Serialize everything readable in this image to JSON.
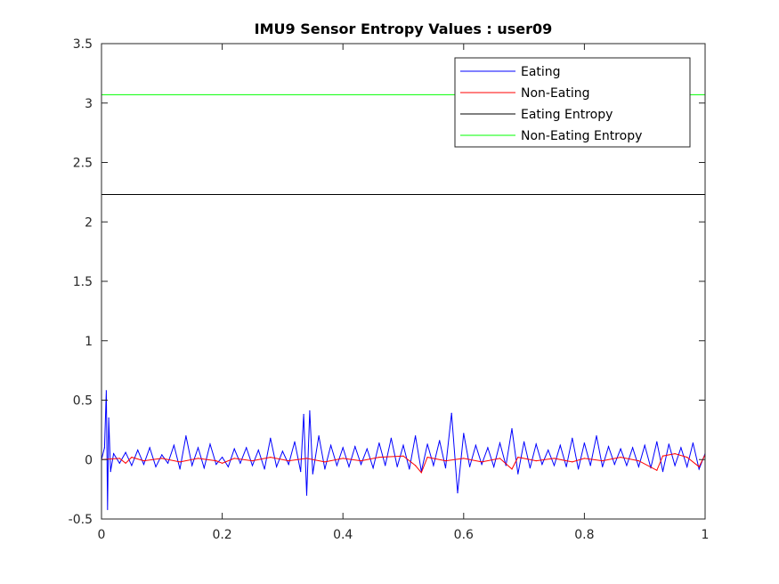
{
  "chart_data": {
    "type": "line",
    "title": "IMU9 Sensor Entropy Values : user09",
    "xlabel": "",
    "ylabel": "",
    "xlim": [
      0,
      1
    ],
    "ylim": [
      -0.5,
      3.5
    ],
    "xticks": [
      0,
      0.2,
      0.4,
      0.6,
      0.8,
      1
    ],
    "xtick_labels": [
      "0",
      "0.2",
      "0.4",
      "0.6",
      "0.8",
      "1"
    ],
    "yticks": [
      -0.5,
      0,
      0.5,
      1,
      1.5,
      2,
      2.5,
      3,
      3.5
    ],
    "ytick_labels": [
      "-0.5",
      "0",
      "0.5",
      "1",
      "1.5",
      "2",
      "2.5",
      "3",
      "3.5"
    ],
    "grid": false,
    "legend_position": "top-right",
    "series": [
      {
        "name": "Eating",
        "color": "#0000ff",
        "kind": "signal",
        "x": [
          0,
          0.005,
          0.008,
          0.01,
          0.012,
          0.015,
          0.02,
          0.03,
          0.04,
          0.05,
          0.06,
          0.07,
          0.08,
          0.09,
          0.1,
          0.11,
          0.12,
          0.13,
          0.14,
          0.15,
          0.16,
          0.17,
          0.18,
          0.19,
          0.2,
          0.21,
          0.22,
          0.23,
          0.24,
          0.25,
          0.26,
          0.27,
          0.28,
          0.29,
          0.3,
          0.31,
          0.32,
          0.33,
          0.335,
          0.34,
          0.345,
          0.35,
          0.36,
          0.37,
          0.38,
          0.39,
          0.4,
          0.41,
          0.42,
          0.43,
          0.44,
          0.45,
          0.46,
          0.47,
          0.48,
          0.49,
          0.5,
          0.51,
          0.52,
          0.53,
          0.54,
          0.55,
          0.56,
          0.57,
          0.58,
          0.59,
          0.6,
          0.61,
          0.62,
          0.63,
          0.64,
          0.65,
          0.66,
          0.67,
          0.68,
          0.69,
          0.7,
          0.71,
          0.72,
          0.73,
          0.74,
          0.75,
          0.76,
          0.77,
          0.78,
          0.79,
          0.8,
          0.81,
          0.82,
          0.83,
          0.84,
          0.85,
          0.86,
          0.87,
          0.88,
          0.89,
          0.9,
          0.91,
          0.92,
          0.93,
          0.94,
          0.95,
          0.96,
          0.97,
          0.98,
          0.99,
          1
        ],
        "y": [
          0,
          0.1,
          0.58,
          -0.42,
          0.35,
          -0.1,
          0.05,
          -0.03,
          0.06,
          -0.05,
          0.08,
          -0.04,
          0.1,
          -0.06,
          0.04,
          -0.03,
          0.12,
          -0.08,
          0.2,
          -0.05,
          0.1,
          -0.07,
          0.13,
          -0.04,
          0.02,
          -0.06,
          0.09,
          -0.03,
          0.1,
          -0.05,
          0.08,
          -0.08,
          0.18,
          -0.06,
          0.07,
          -0.04,
          0.15,
          -0.1,
          0.38,
          -0.3,
          0.41,
          -0.12,
          0.2,
          -0.08,
          0.12,
          -0.05,
          0.1,
          -0.06,
          0.11,
          -0.04,
          0.09,
          -0.07,
          0.14,
          -0.05,
          0.18,
          -0.06,
          0.12,
          -0.08,
          0.2,
          -0.1,
          0.13,
          -0.05,
          0.16,
          -0.07,
          0.39,
          -0.28,
          0.22,
          -0.06,
          0.12,
          -0.04,
          0.1,
          -0.06,
          0.14,
          -0.05,
          0.26,
          -0.12,
          0.15,
          -0.07,
          0.13,
          -0.04,
          0.08,
          -0.05,
          0.12,
          -0.06,
          0.18,
          -0.08,
          0.14,
          -0.05,
          0.2,
          -0.06,
          0.11,
          -0.04,
          0.09,
          -0.05,
          0.1,
          -0.06,
          0.12,
          -0.07,
          0.15,
          -0.1,
          0.13,
          -0.05,
          0.1,
          -0.06,
          0.14,
          -0.08,
          0.05
        ]
      },
      {
        "name": "Non-Eating",
        "color": "#ff0000",
        "kind": "signal",
        "x": [
          0,
          0.03,
          0.04,
          0.05,
          0.07,
          0.1,
          0.13,
          0.16,
          0.19,
          0.2,
          0.22,
          0.25,
          0.28,
          0.31,
          0.34,
          0.37,
          0.4,
          0.43,
          0.46,
          0.5,
          0.52,
          0.53,
          0.54,
          0.57,
          0.6,
          0.63,
          0.66,
          0.68,
          0.69,
          0.72,
          0.75,
          0.78,
          0.8,
          0.83,
          0.86,
          0.89,
          0.92,
          0.93,
          0.95,
          0.97,
          0.99,
          1
        ],
        "y": [
          0,
          0.01,
          -0.03,
          0.02,
          -0.01,
          0.01,
          -0.02,
          0.01,
          -0.01,
          -0.03,
          0.01,
          -0.01,
          0.02,
          -0.01,
          0.01,
          -0.02,
          0.01,
          -0.01,
          0.02,
          0.03,
          -0.05,
          -0.11,
          0.02,
          -0.01,
          0.01,
          -0.02,
          0.01,
          -0.08,
          0.02,
          -0.01,
          0.01,
          -0.02,
          0.01,
          -0.01,
          0.02,
          -0.01,
          -0.09,
          0.03,
          0.05,
          0.02,
          -0.06,
          0.04
        ]
      },
      {
        "name": "Eating Entropy",
        "color": "#000000",
        "kind": "constant",
        "x": [
          0,
          1
        ],
        "y": [
          2.23,
          2.23
        ]
      },
      {
        "name": "Non-Eating Entropy",
        "color": "#00ff00",
        "kind": "constant",
        "x": [
          0,
          1
        ],
        "y": [
          3.07,
          3.07
        ]
      }
    ]
  }
}
